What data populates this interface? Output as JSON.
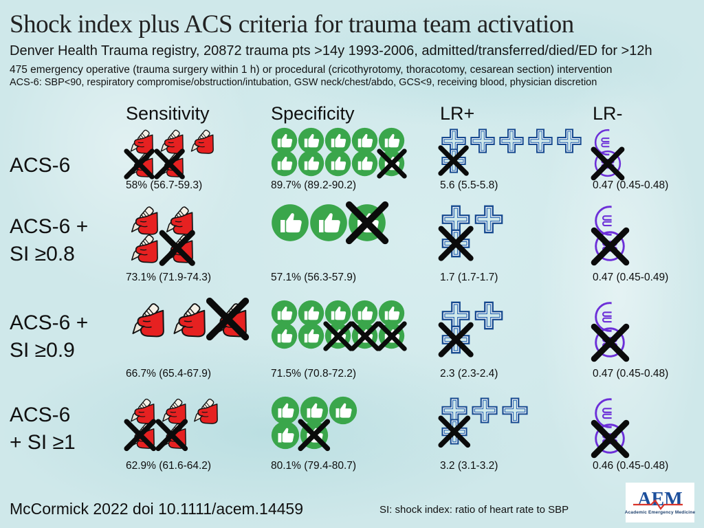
{
  "header": {
    "title": "Shock index plus ACS criteria for trauma team activation",
    "subtitle": "Denver Health Trauma registry, 20872 trauma pts >14y 1993-2006, admitted/transferred/died/ED for >12h",
    "note1": "475 emergency operative (trauma surgery within 1 h) or procedural (cricothyrotomy, thoracotomy, cesarean section) intervention",
    "note2": "ACS-6: SBP<90, respiratory compromise/obstruction/intubation, GSW neck/chest/abdo, GCS<9, receiving blood, physician discretion"
  },
  "columns": [
    {
      "key": "sensitivity",
      "label": "Sensitivity",
      "icon": "scalpel-hand-icon"
    },
    {
      "key": "specificity",
      "label": "Specificity",
      "icon": "thumbs-up-icon"
    },
    {
      "key": "lr_plus",
      "label": "LR+",
      "icon": "plus-cross-icon"
    },
    {
      "key": "lr_minus",
      "label": "LR-",
      "icon": "circle-equals-icon"
    }
  ],
  "rows": [
    {
      "label_lines": [
        "ACS-6"
      ],
      "cells": {
        "sensitivity": {
          "value": "58% (56.7-59.3)",
          "icon": "scalpel",
          "size": 40,
          "lines": [
            [
              "p",
              "p",
              "p"
            ],
            [
              "x",
              "x"
            ]
          ]
        },
        "specificity": {
          "value": "89.7% (89.2-90.2)",
          "icon": "thumb",
          "size": 39,
          "lines": [
            [
              "p",
              "p",
              "p",
              "p",
              "p"
            ],
            [
              "p",
              "p",
              "p",
              "p",
              "x"
            ]
          ]
        },
        "lr_plus": {
          "value": "5.6 (5.5-5.8)",
          "icon": "cross",
          "size": 40,
          "lines": [
            [
              "p",
              "p",
              "p",
              "p",
              "p"
            ],
            [
              "x"
            ]
          ]
        },
        "lr_minus": {
          "value": "0.47 (0.45-0.48)",
          "icon": "ratio",
          "size": 44,
          "lines": [
            [
              "h"
            ],
            [
              "x"
            ]
          ]
        }
      }
    },
    {
      "label_lines": [
        "ACS-6 +",
        "SI ≥0.8"
      ],
      "cells": {
        "sensitivity": {
          "value": "73.1% (71.9-74.3)",
          "icon": "scalpel",
          "size": 47,
          "lines": [
            [
              "p",
              "p"
            ],
            [
              "p",
              "x"
            ]
          ]
        },
        "specificity": {
          "value": "57.1% (56.3-57.9)",
          "icon": "thumb",
          "size": 56,
          "lines": [
            [
              "p",
              "p",
              "x"
            ]
          ]
        },
        "lr_plus": {
          "value": "1.7 (1.7-1.7)",
          "icon": "cross",
          "size": 46,
          "lines": [
            [
              "p",
              "p"
            ],
            [
              "x"
            ]
          ]
        },
        "lr_minus": {
          "value": "0.47 (0.45-0.49)",
          "icon": "ratio",
          "size": 50,
          "lines": [
            [
              "h"
            ],
            [
              "x"
            ]
          ]
        }
      }
    },
    {
      "label_lines": [
        "ACS-6 +",
        "SI ≥0.9"
      ],
      "cells": {
        "sensitivity": {
          "value": "66.7% (65.4-67.9)",
          "icon": "scalpel",
          "size": 56,
          "lines": [
            [
              "p",
              "p",
              "x"
            ]
          ]
        },
        "specificity": {
          "value": "71.5% (70.8-72.2)",
          "icon": "thumb",
          "size": 39,
          "lines": [
            [
              "p",
              "p",
              "p",
              "p",
              "p"
            ],
            [
              "p",
              "p",
              "x",
              "x",
              "x"
            ]
          ]
        },
        "lr_plus": {
          "value": "2.3 (2.3-2.4)",
          "icon": "cross",
          "size": 46,
          "lines": [
            [
              "p",
              "p"
            ],
            [
              "x"
            ]
          ]
        },
        "lr_minus": {
          "value": "0.47 (0.45-0.48)",
          "icon": "ratio",
          "size": 50,
          "lines": [
            [
              "h"
            ],
            [
              "x"
            ]
          ]
        }
      }
    },
    {
      "label_lines": [
        "ACS-6",
        "+ SI ≥1"
      ],
      "cells": {
        "sensitivity": {
          "value": "62.9% (61.6-64.2)",
          "icon": "scalpel",
          "size": 42,
          "lines": [
            [
              "p",
              "p",
              "p"
            ],
            [
              "x",
              "x"
            ]
          ]
        },
        "specificity": {
          "value": "80.1% (79.4-80.7)",
          "icon": "thumb",
          "size": 42,
          "lines": [
            [
              "p",
              "p",
              "p"
            ],
            [
              "p",
              "x"
            ]
          ]
        },
        "lr_plus": {
          "value": "3.2 (3.1-3.2)",
          "icon": "cross",
          "size": 42,
          "lines": [
            [
              "p",
              "p",
              "p"
            ],
            [
              "x"
            ]
          ]
        },
        "lr_minus": {
          "value": "0.46 (0.45-0.48)",
          "icon": "ratio",
          "size": 50,
          "lines": [
            [
              "h"
            ],
            [
              "x"
            ]
          ]
        }
      }
    }
  ],
  "footer": {
    "citation": "McCormick 2022 doi 10.1111/acem.14459",
    "si_note": "SI: shock index: ratio of heart rate to SBP",
    "logo_text": "AEM",
    "logo_caption": "Academic Emergency Medicine"
  },
  "colors": {
    "background": "#cfe8ea",
    "thumb_green": "#3aa64b",
    "cross_blue": "#16498f",
    "ratio_purple": "#6c2fd8",
    "hand_red": "#e62121",
    "cross_out_black": "#0b0b0b",
    "logo_blue": "#1c4f9c",
    "logo_red": "#d9342b"
  },
  "chart_data": {
    "type": "table",
    "title": "Shock index plus ACS criteria for trauma team activation",
    "categories": [
      "ACS-6",
      "ACS-6 + SI ≥0.8",
      "ACS-6 + SI ≥0.9",
      "ACS-6 + SI ≥1"
    ],
    "series": [
      {
        "name": "Sensitivity",
        "values": [
          "58% (56.7-59.3)",
          "73.1% (71.9-74.3)",
          "66.7% (65.4-67.9)",
          "62.9% (61.6-64.2)"
        ]
      },
      {
        "name": "Specificity",
        "values": [
          "89.7% (89.2-90.2)",
          "57.1% (56.3-57.9)",
          "71.5% (70.8-72.2)",
          "80.1% (79.4-80.7)"
        ]
      },
      {
        "name": "LR+",
        "values": [
          "5.6 (5.5-5.8)",
          "1.7 (1.7-1.7)",
          "2.3 (2.3-2.4)",
          "3.2 (3.1-3.2)"
        ]
      },
      {
        "name": "LR-",
        "values": [
          "0.47 (0.45-0.48)",
          "0.47 (0.45-0.49)",
          "0.47 (0.45-0.48)",
          "0.46 (0.45-0.48)"
        ]
      }
    ],
    "icon_legend": {
      "sensitivity": "red hand holding scalpel pictogram, crossed-out = missed",
      "specificity": "green thumbs-up circle pictogram, crossed-out = false positive",
      "lr_plus": "blue outlined plus cross pictogram, crossed-out = fractional part",
      "lr_minus": "purple circle with equals sign, partial arc + crossed-out circle"
    }
  }
}
